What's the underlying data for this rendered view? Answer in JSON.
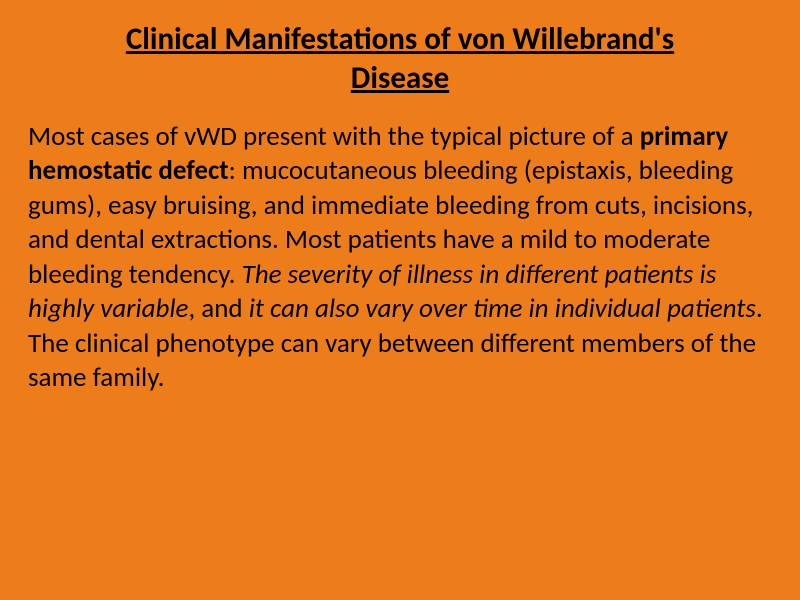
{
  "slide": {
    "background_color": "#ed7d1a",
    "text_color": "#000000",
    "title": "Clinical Manifestations of von Willebrand's Disease",
    "title_fontsize": 31,
    "title_weight": "bold",
    "title_underline": true,
    "body_fontsize": 27,
    "body": {
      "p1a": "Most cases of vWD present with the typical picture of a ",
      "p1_bold": "primary hemostatic defect",
      "p1b": ": mucocutaneous bleeding (epistaxis, bleeding gums), easy bruising, and immediate bleeding from cuts, incisions, and dental extractions. Most patients have a mild to moderate bleeding tendency. ",
      "p1_italic1": "The severity of illness in different patients is highly variable",
      "p1c": ", and ",
      "p1_italic2": "it can also vary over time in individual patients",
      "p1d": ". The clinical phenotype can vary between different members of the same family."
    }
  }
}
